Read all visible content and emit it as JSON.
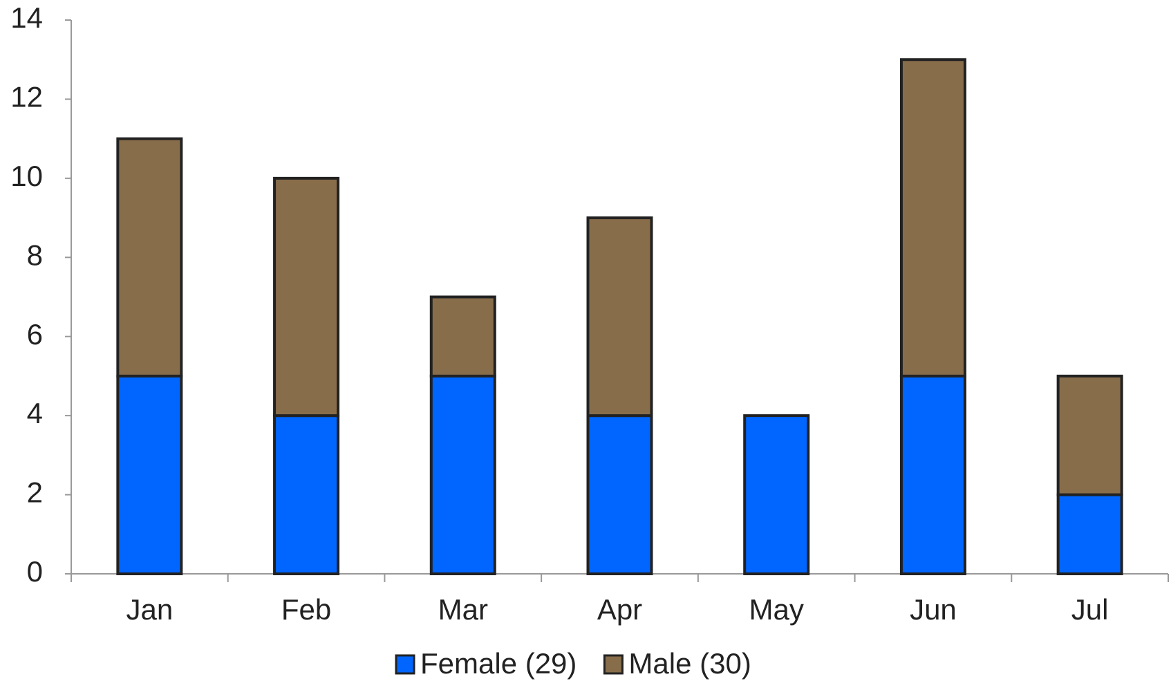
{
  "chart_data": {
    "type": "stacked_bar",
    "categories": [
      "Jan",
      "Feb",
      "Mar",
      "Apr",
      "May",
      "Jun",
      "Jul"
    ],
    "series": [
      {
        "name": "Female (29)",
        "color": "#0066ff",
        "values": [
          5,
          4,
          5,
          4,
          4,
          5,
          2
        ]
      },
      {
        "name": "Male (30)",
        "color": "#886d4b",
        "values": [
          6,
          6,
          2,
          5,
          0,
          8,
          3
        ]
      }
    ],
    "ylim": [
      0,
      14
    ],
    "yticks": [
      0,
      2,
      4,
      6,
      8,
      10,
      12,
      14
    ],
    "grid": false,
    "legend": "bottom"
  }
}
